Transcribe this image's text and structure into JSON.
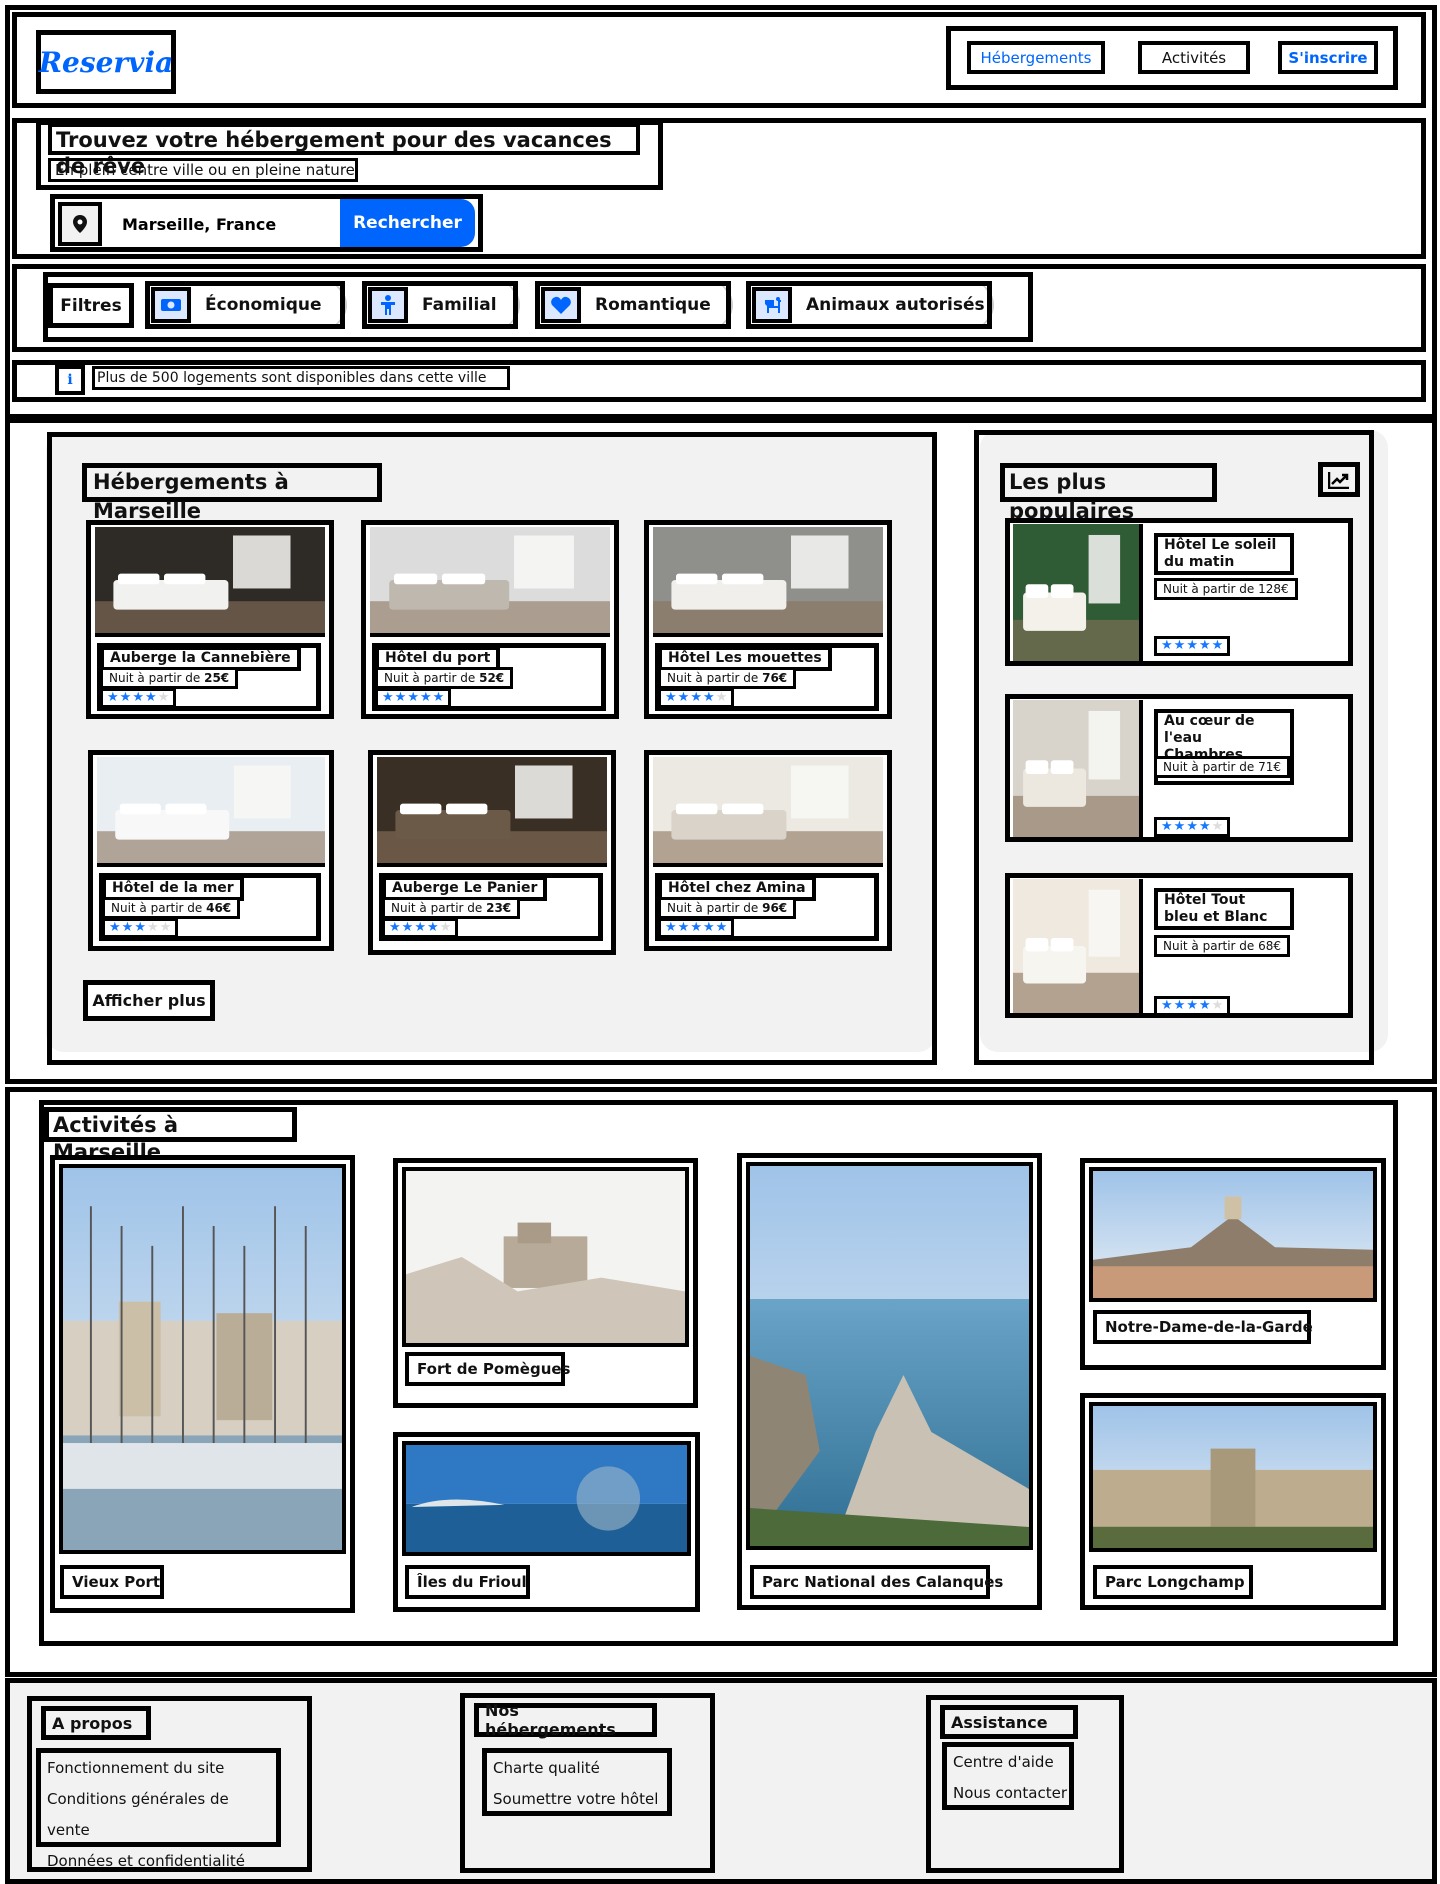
{
  "brand": "Reservia",
  "nav": [
    "Hébergements",
    "Activités",
    "S'inscrire"
  ],
  "hero": {
    "title": "Trouvez votre hébergement pour des vacances de rêve",
    "subtitle": "En plein centre ville ou en pleine nature",
    "location": "Marseille, France",
    "search_button": "Rechercher"
  },
  "filters": {
    "label": "Filtres",
    "items": [
      "Économique",
      "Familial",
      "Romantique",
      "Animaux autorisés"
    ]
  },
  "info": "Plus de 500 logements sont disponibles dans cette ville",
  "lodgings": {
    "title": "Hébergements à Marseille",
    "more_button": "Afficher plus",
    "price_prefix": "Nuit à partir de ",
    "items": [
      {
        "name": "Auberge la Cannebière",
        "price": "25€",
        "stars": 4
      },
      {
        "name": "Hôtel du port",
        "price": "52€",
        "stars": 5
      },
      {
        "name": "Hôtel Les mouettes",
        "price": "76€",
        "stars": 4
      },
      {
        "name": "Hôtel de la mer",
        "price": "46€",
        "stars": 3
      },
      {
        "name": "Auberge Le Panier",
        "price": "23€",
        "stars": 4
      },
      {
        "name": "Hôtel chez Amina",
        "price": "96€",
        "stars": 5
      }
    ]
  },
  "popular": {
    "title": "Les plus populaires",
    "items": [
      {
        "name": "Hôtel Le soleil du matin",
        "price": "Nuit à partir de 128€",
        "stars": 5
      },
      {
        "name": "Au cœur de l'eau Chambres d'hôtes",
        "price": "Nuit à partir de 71€",
        "stars": 4
      },
      {
        "name": "Hôtel Tout bleu et Blanc",
        "price": "Nuit à partir de 68€",
        "stars": 4
      }
    ]
  },
  "activities": {
    "title": "Activités à Marseille",
    "items": [
      "Vieux Port",
      "Fort de Pomègues",
      "Îles du Frioul",
      "Parc National des Calanques",
      "Notre-Dame-de-la-Garde",
      "Parc Longchamp"
    ]
  },
  "footer": {
    "columns": [
      {
        "title": "A propos",
        "links": [
          "Fonctionnement du site",
          "Conditions générales de vente",
          "Données et confidentialité"
        ]
      },
      {
        "title": "Nos hébergements",
        "links": [
          "Charte qualité",
          "Soumettre votre hôtel"
        ]
      },
      {
        "title": "Assistance",
        "links": [
          "Centre d'aide",
          "Nous contacter"
        ]
      }
    ]
  },
  "colors": {
    "accent": "#0065FC",
    "star": "#1677FF",
    "panel": "#F2F2F2"
  },
  "icons": [
    "map-pin-icon",
    "money-icon",
    "child-icon",
    "heart-icon",
    "dog-icon",
    "info-icon",
    "trend-chart-icon",
    "star-icon"
  ]
}
